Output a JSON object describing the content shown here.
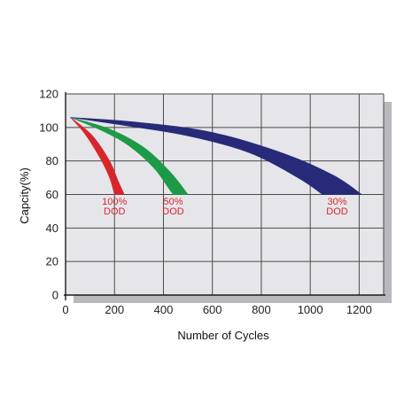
{
  "chart_data": {
    "type": "area",
    "title": "",
    "xlabel": "Number of Cycles",
    "ylabel": "Capcity(%)",
    "xlim": [
      0,
      1300
    ],
    "ylim": [
      0,
      120
    ],
    "x_ticks": [
      "0",
      "200",
      "400",
      "600",
      "800",
      "1000",
      "1200"
    ],
    "y_ticks": [
      "0",
      "20",
      "40",
      "60",
      "80",
      "100",
      "120"
    ],
    "grid": true,
    "legend": "none",
    "series": [
      {
        "label_lines": [
          "100%",
          "DOD"
        ],
        "color": "#d7262b",
        "start": [
          20,
          106
        ],
        "upper": [
          [
            20,
            106
          ],
          [
            110,
            95
          ],
          [
            180,
            80
          ],
          [
            215,
            68
          ],
          [
            240,
            60
          ]
        ],
        "lower": [
          [
            20,
            106
          ],
          [
            80,
            96
          ],
          [
            140,
            82
          ],
          [
            180,
            70
          ],
          [
            200,
            60
          ]
        ]
      },
      {
        "label_lines": [
          "50%",
          "DOD"
        ],
        "color": "#1d9a46",
        "start": [
          20,
          106
        ],
        "upper": [
          [
            20,
            106
          ],
          [
            180,
            99
          ],
          [
            320,
            88
          ],
          [
            430,
            73
          ],
          [
            500,
            60
          ]
        ],
        "lower": [
          [
            20,
            106
          ],
          [
            150,
            98
          ],
          [
            260,
            89
          ],
          [
            360,
            76
          ],
          [
            420,
            64
          ],
          [
            440,
            60
          ]
        ]
      },
      {
        "label_lines": [
          "30%",
          "DOD"
        ],
        "color": "#272a78",
        "start": [
          20,
          106
        ],
        "upper": [
          [
            20,
            106
          ],
          [
            300,
            103
          ],
          [
            600,
            97
          ],
          [
            900,
            84
          ],
          [
            1100,
            71
          ],
          [
            1210,
            60
          ]
        ],
        "lower": [
          [
            20,
            106
          ],
          [
            250,
            101
          ],
          [
            500,
            95
          ],
          [
            750,
            85
          ],
          [
            950,
            70
          ],
          [
            1050,
            60
          ]
        ]
      }
    ],
    "label_anchors": [
      [
        200,
        54
      ],
      [
        440,
        54
      ],
      [
        1110,
        54
      ]
    ]
  }
}
